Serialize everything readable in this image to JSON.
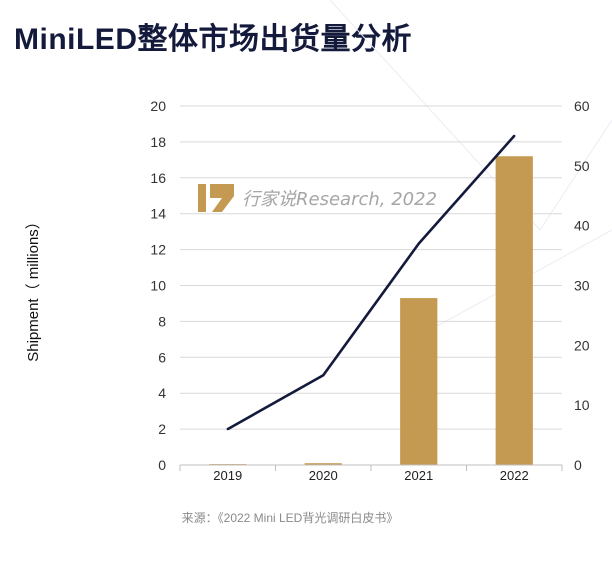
{
  "header": {
    "title": "MiniLED整体市场出货量分析"
  },
  "watermark": {
    "text": "行家说Research, 2022"
  },
  "source": {
    "text": "来源：《2022 Mini LED背光调研白皮书》"
  },
  "colors": {
    "bar": "#c49a52",
    "line": "#141a3c",
    "title": "#141a3c"
  },
  "chart_data": {
    "type": "bar",
    "categories": [
      "2019",
      "2020",
      "2021",
      "2022"
    ],
    "series": [
      {
        "type": "bar",
        "axis": "left",
        "values": [
          0.05,
          0.1,
          9.3,
          17.2
        ]
      },
      {
        "type": "line",
        "axis": "right",
        "values": [
          6,
          15,
          37,
          55
        ]
      }
    ],
    "ylabel": "Shipment（ millions）",
    "ylim": [
      0,
      20
    ],
    "yticks": [
      0,
      2,
      4,
      6,
      8,
      10,
      12,
      14,
      16,
      18,
      20
    ],
    "y2lim": [
      0,
      60
    ],
    "y2ticks": [
      0,
      10,
      20,
      30,
      40,
      50,
      60
    ],
    "grid": true
  }
}
